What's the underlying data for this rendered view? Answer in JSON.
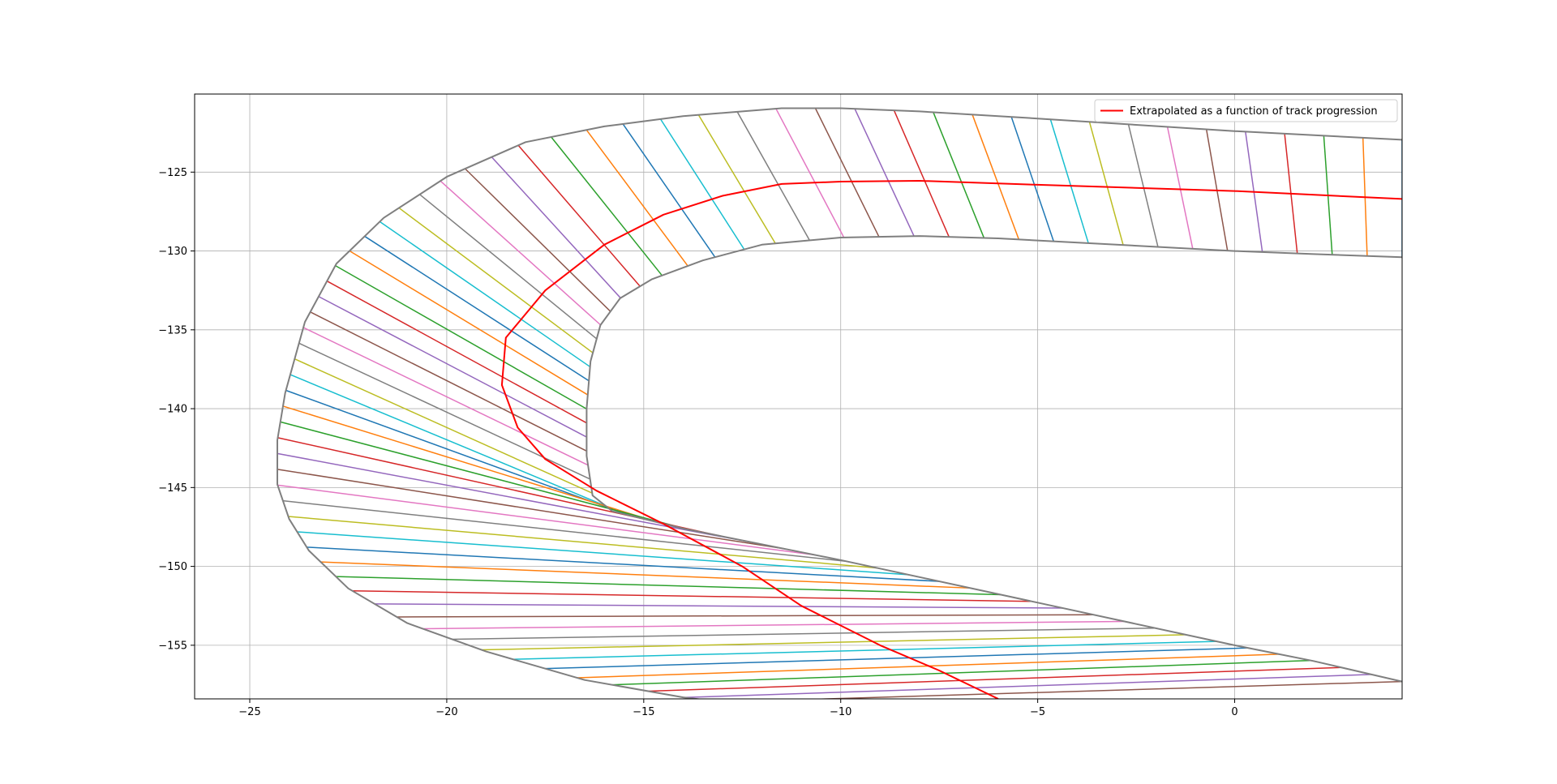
{
  "chart_data": {
    "type": "line",
    "title": "",
    "xlabel": "",
    "ylabel": "",
    "xlim": [
      -26.4,
      4.25
    ],
    "ylim": [
      -158.4,
      -120.05
    ],
    "grid": true,
    "legend_position": "top-right",
    "x_ticks": [
      -25,
      -20,
      -15,
      -10,
      -5,
      0
    ],
    "y_ticks": [
      -125,
      -130,
      -135,
      -140,
      -145,
      -150,
      -155
    ],
    "x_tick_labels": [
      "−25",
      "−20",
      "−15",
      "−10",
      "−5",
      "0"
    ],
    "y_tick_labels": [
      "−125",
      "−130",
      "−135",
      "−140",
      "−145",
      "−150",
      "−155"
    ],
    "track_color": "#7f7f7f",
    "connector_palette": [
      "#1f77b4",
      "#ff7f0e",
      "#2ca02c",
      "#d62728",
      "#9467bd",
      "#8c564b",
      "#e377c2",
      "#7f7f7f",
      "#bcbd22",
      "#17becf"
    ],
    "outer_boundary": [
      [
        4.25,
        -122.95
      ],
      [
        0,
        -122.4
      ],
      [
        -5,
        -121.6
      ],
      [
        -8,
        -121.15
      ],
      [
        -10,
        -120.95
      ],
      [
        -11.5,
        -120.95
      ],
      [
        -14,
        -121.45
      ],
      [
        -16,
        -122.1
      ],
      [
        -18,
        -123.1
      ],
      [
        -20,
        -125.3
      ],
      [
        -21.6,
        -127.9
      ],
      [
        -22.8,
        -130.8
      ],
      [
        -23.6,
        -134.5
      ],
      [
        -24.1,
        -139.0
      ],
      [
        -24.3,
        -142.0
      ],
      [
        -24.3,
        -144.8
      ],
      [
        -24.0,
        -147.0
      ],
      [
        -23.5,
        -149.0
      ],
      [
        -22.5,
        -151.4
      ],
      [
        -21.0,
        -153.6
      ],
      [
        -19.0,
        -155.4
      ],
      [
        -16.5,
        -157.2
      ],
      [
        -14.0,
        -158.3
      ],
      [
        -13.0,
        -158.6
      ]
    ],
    "inner_boundary": [
      [
        4.25,
        -130.4
      ],
      [
        2,
        -130.2
      ],
      [
        0,
        -130.0
      ],
      [
        -3,
        -129.6
      ],
      [
        -6,
        -129.2
      ],
      [
        -8,
        -129.05
      ],
      [
        -10,
        -129.15
      ],
      [
        -12,
        -129.6
      ],
      [
        -13.5,
        -130.6
      ],
      [
        -14.8,
        -131.8
      ],
      [
        -15.6,
        -133.0
      ],
      [
        -16.1,
        -134.7
      ],
      [
        -16.35,
        -137.0
      ],
      [
        -16.45,
        -140.0
      ],
      [
        -16.45,
        -143.0
      ],
      [
        -16.3,
        -145.5
      ],
      [
        -15.8,
        -146.5
      ],
      [
        -14,
        -147.6
      ],
      [
        -10,
        -149.6
      ],
      [
        -5,
        -152.3
      ],
      [
        0,
        -155.0
      ],
      [
        2,
        -156.0
      ],
      [
        4.25,
        -157.3
      ]
    ],
    "series": [
      {
        "name": "Extrapolated as a function of track progression",
        "color": "#ff0000",
        "points": [
          [
            4.25,
            -126.7
          ],
          [
            0,
            -126.2
          ],
          [
            -5,
            -125.8
          ],
          [
            -8,
            -125.55
          ],
          [
            -10,
            -125.6
          ],
          [
            -11.5,
            -125.75
          ],
          [
            -13,
            -126.5
          ],
          [
            -14.5,
            -127.7
          ],
          [
            -16,
            -129.6
          ],
          [
            -17.5,
            -132.5
          ],
          [
            -18.5,
            -135.5
          ],
          [
            -18.6,
            -138.5
          ],
          [
            -18.2,
            -141.2
          ],
          [
            -17.5,
            -143.2
          ],
          [
            -16.2,
            -145.2
          ],
          [
            -14.5,
            -147.3
          ],
          [
            -12.5,
            -150.0
          ],
          [
            -11,
            -152.5
          ],
          [
            -9,
            -155.0
          ],
          [
            -7.5,
            -156.6
          ],
          [
            -6.0,
            -158.4
          ]
        ]
      }
    ],
    "legend": [
      "Extrapolated as a function of track progression"
    ]
  }
}
